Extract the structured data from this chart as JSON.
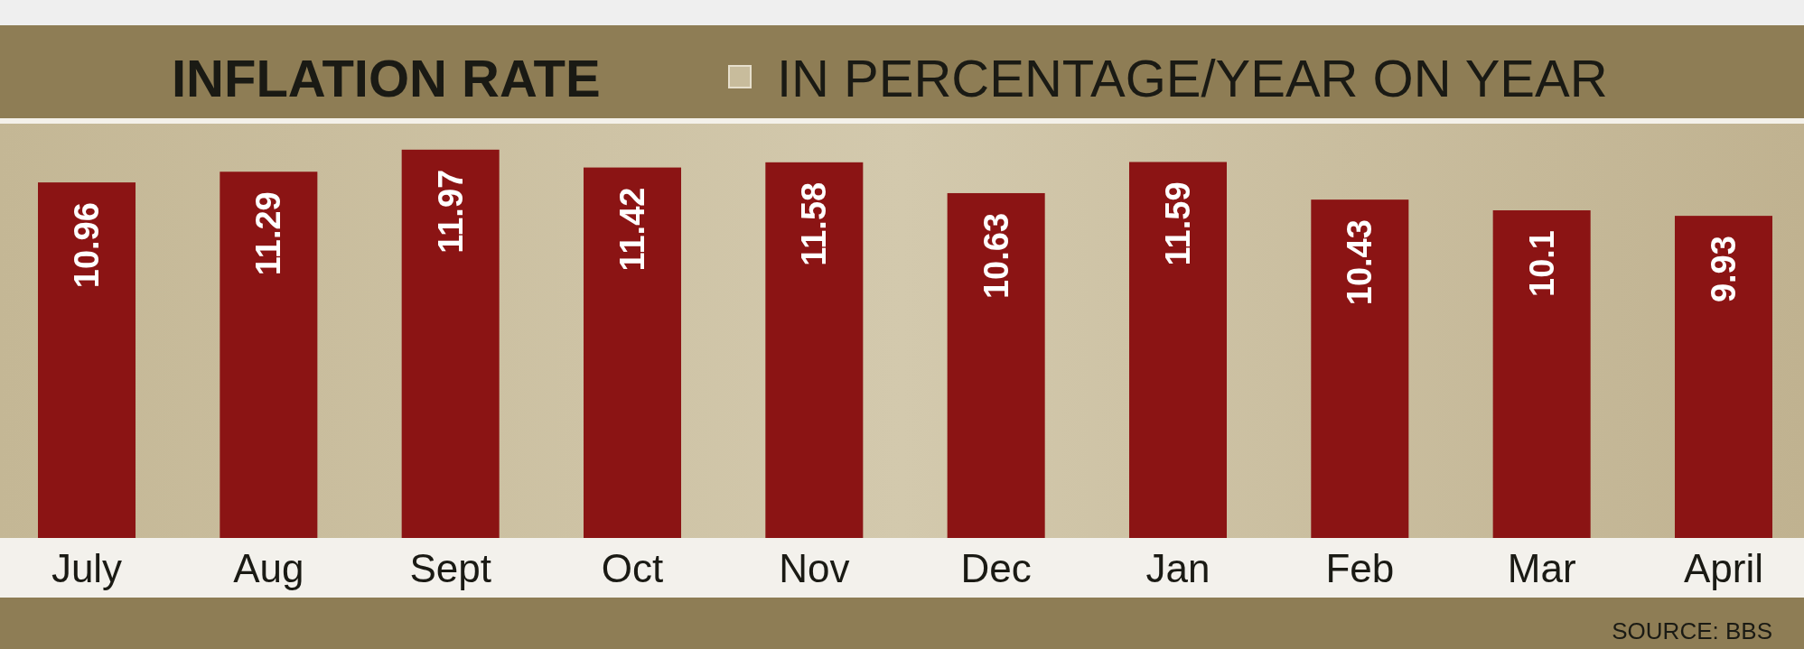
{
  "chart_data": {
    "type": "bar",
    "title": "INFLATION RATE",
    "subtitle": "IN PERCENTAGE/YEAR ON YEAR",
    "categories": [
      "July",
      "Aug",
      "Sept",
      "Oct",
      "Nov",
      "Dec",
      "Jan",
      "Feb",
      "Mar",
      "April"
    ],
    "values": [
      10.96,
      11.29,
      11.97,
      11.42,
      11.58,
      10.63,
      11.59,
      10.43,
      10.1,
      9.93
    ],
    "color": "#8b1414",
    "data_labels": true,
    "tick_labels": "x",
    "annotations": [
      "SOURCE: BBS"
    ]
  }
}
